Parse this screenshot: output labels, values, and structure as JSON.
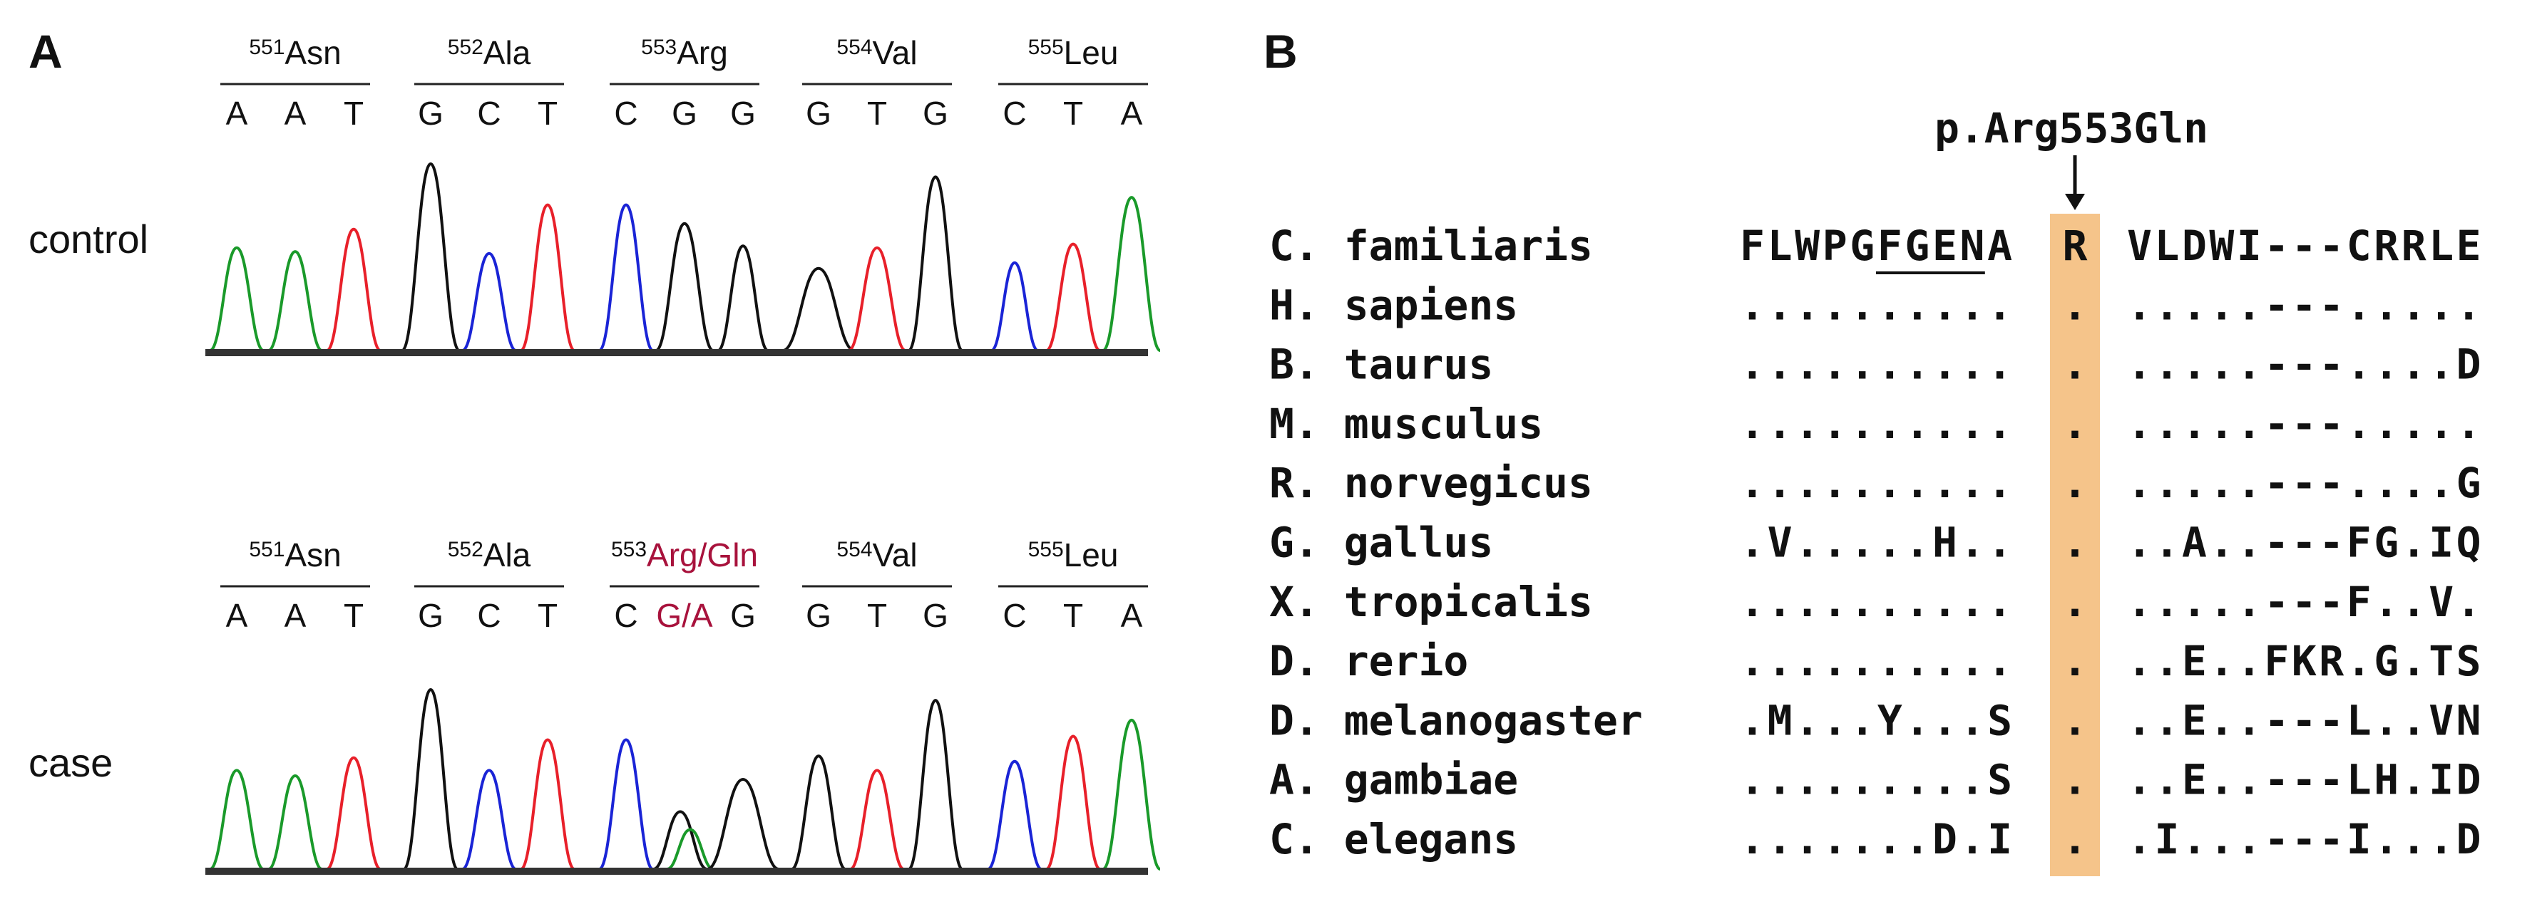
{
  "panelA": {
    "label": "A",
    "control": {
      "row_label": "control",
      "codons": [
        {
          "num": "551",
          "aa": "Asn",
          "bases": [
            "A",
            "A",
            "T"
          ],
          "highlight": false
        },
        {
          "num": "552",
          "aa": "Ala",
          "bases": [
            "G",
            "C",
            "T"
          ],
          "highlight": false
        },
        {
          "num": "553",
          "aa": "Arg",
          "bases": [
            "C",
            "G",
            "G"
          ],
          "highlight": false
        },
        {
          "num": "554",
          "aa": "Val",
          "bases": [
            "G",
            "T",
            "G"
          ],
          "highlight": false
        },
        {
          "num": "555",
          "aa": "Leu",
          "bases": [
            "C",
            "T",
            "A"
          ],
          "highlight": false
        }
      ]
    },
    "case": {
      "row_label": "case",
      "codons": [
        {
          "num": "551",
          "aa": "Asn",
          "bases": [
            "A",
            "A",
            "T"
          ],
          "highlight": false
        },
        {
          "num": "552",
          "aa": "Ala",
          "bases": [
            "G",
            "C",
            "T"
          ],
          "highlight": false
        },
        {
          "num": "553",
          "aa": "Arg/Gln",
          "bases": [
            "C",
            "G/A",
            "G"
          ],
          "highlight": true,
          "highlight_base": 1
        },
        {
          "num": "554",
          "aa": "Val",
          "bases": [
            "G",
            "T",
            "G"
          ],
          "highlight": false
        },
        {
          "num": "555",
          "aa": "Leu",
          "bases": [
            "C",
            "T",
            "A"
          ],
          "highlight": false
        }
      ]
    },
    "colors": {
      "A": "#1a9a2a",
      "C": "#1a24d6",
      "G": "#111111",
      "T": "#e8202a",
      "highlight": "#a8123c",
      "baseline": "#333333"
    }
  },
  "panelB": {
    "label": "B",
    "mutation": "p.Arg553Gln",
    "highlight_color": "#f5c48a",
    "rows": [
      {
        "species": "C. familiaris",
        "left": "FLWPGFGENA",
        "mid": "R",
        "right": "VLDWI---CRRLE"
      },
      {
        "species": "H. sapiens",
        "left": "..........",
        "mid": ".",
        "right": ".....---....."
      },
      {
        "species": "B. taurus",
        "left": "..........",
        "mid": ".",
        "right": ".....---....D"
      },
      {
        "species": "M. musculus",
        "left": "..........",
        "mid": ".",
        "right": ".....---....."
      },
      {
        "species": "R. norvegicus",
        "left": "..........",
        "mid": ".",
        "right": ".....---....G"
      },
      {
        "species": "G. gallus",
        "left": ".V.....H..",
        "mid": ".",
        "right": "..A..---FG.IQ"
      },
      {
        "species": "X. tropicalis",
        "left": "..........",
        "mid": ".",
        "right": ".....---F..V."
      },
      {
        "species": "D. rerio",
        "left": "..........",
        "mid": ".",
        "right": "..E..FKR.G.TS"
      },
      {
        "species": "D. melanogaster",
        "left": ".M...Y...S",
        "mid": ".",
        "right": "..E..---L..VN"
      },
      {
        "species": "A. gambiae",
        "left": ".........S",
        "mid": ".",
        "right": "..E..---LH.ID"
      },
      {
        "species": "C. elegans",
        "left": ".......D.I",
        "mid": ".",
        "right": ".I...---I...D"
      }
    ]
  }
}
